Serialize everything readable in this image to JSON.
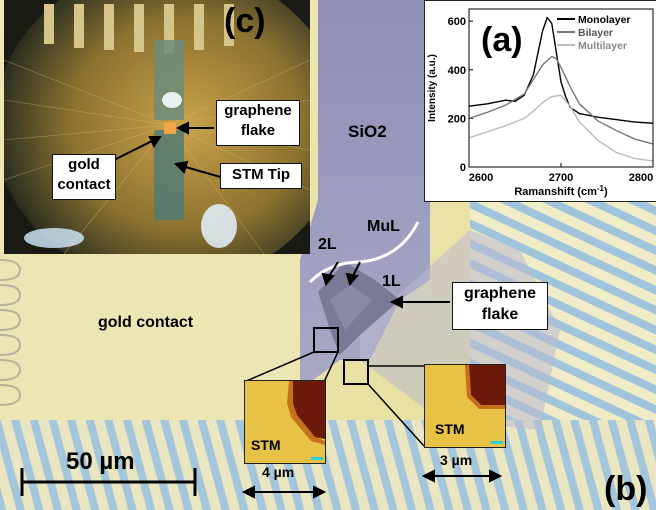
{
  "panels": {
    "a": "(a)",
    "b": "(b)",
    "c": "(c)"
  },
  "microscope": {
    "sio2": "SiO2",
    "mul": "MuL",
    "two_l": "2L",
    "one_l": "1L",
    "gold_contact": "gold contact",
    "graphene_flake_line1": "graphene",
    "graphene_flake_line2": "flake",
    "scale_bar": "50 µm"
  },
  "inset_c": {
    "graphene_line1": "graphene",
    "graphene_line2": "flake",
    "gold_line1": "gold",
    "gold_line2": "contact",
    "stm_tip": "STM Tip"
  },
  "stm_images": [
    {
      "label": "STM",
      "scale": "4 µm"
    },
    {
      "label": "STM",
      "scale": "3 µm"
    }
  ],
  "chart_data": {
    "type": "line",
    "xlabel": "Ramanshift (cm",
    "xlabel_sup": "-1",
    "xlabel_close": ")",
    "ylabel": "Intensity (a.u.)",
    "xlim": [
      2600,
      2800
    ],
    "ylim": [
      0,
      650
    ],
    "x_ticks": [
      "2600",
      "2700",
      "2800"
    ],
    "y_ticks": [
      "0",
      "200",
      "400",
      "600"
    ],
    "legend_position": "top-right",
    "series": [
      {
        "name": "Monolayer",
        "color": "#000000",
        "x": [
          2600,
          2620,
          2640,
          2650,
          2660,
          2670,
          2675,
          2680,
          2685,
          2690,
          2695,
          2700,
          2705,
          2710,
          2720,
          2740,
          2760,
          2780,
          2800
        ],
        "y": [
          250,
          260,
          275,
          270,
          295,
          380,
          470,
          560,
          615,
          590,
          470,
          350,
          290,
          245,
          220,
          205,
          195,
          185,
          180
        ]
      },
      {
        "name": "Bilayer",
        "color": "#777777",
        "x": [
          2600,
          2620,
          2640,
          2660,
          2670,
          2680,
          2690,
          2695,
          2700,
          2710,
          2720,
          2740,
          2760,
          2780,
          2800
        ],
        "y": [
          200,
          225,
          255,
          300,
          360,
          420,
          455,
          445,
          410,
          330,
          260,
          190,
          150,
          115,
          95
        ]
      },
      {
        "name": "Multilayer",
        "color": "#bbbbbb",
        "x": [
          2600,
          2620,
          2640,
          2660,
          2670,
          2680,
          2690,
          2700,
          2710,
          2720,
          2740,
          2760,
          2780,
          2800
        ],
        "y": [
          120,
          145,
          170,
          200,
          230,
          265,
          290,
          295,
          250,
          185,
          110,
          60,
          35,
          25
        ]
      }
    ]
  }
}
